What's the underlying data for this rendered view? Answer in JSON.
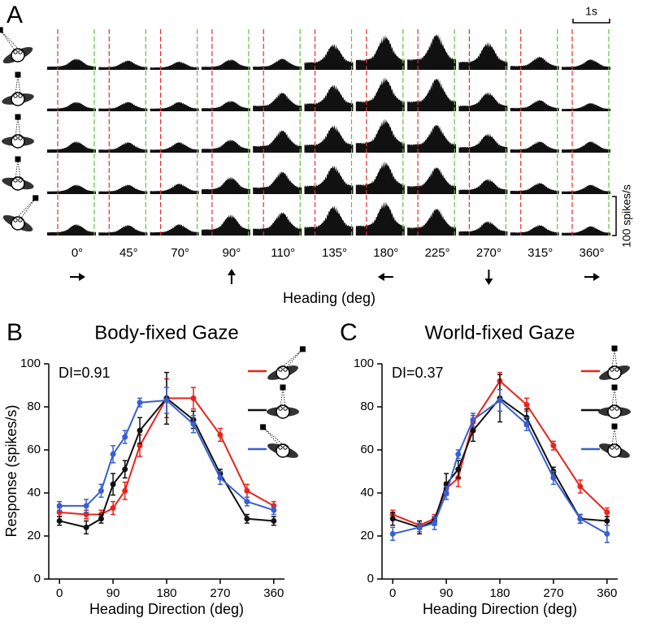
{
  "chart_data": [
    {
      "type": "psth",
      "panel": "A",
      "xlabel": "Heading (deg)",
      "categories": [
        "0°",
        "45°",
        "70°",
        "90°",
        "110°",
        "135°",
        "180°",
        "225°",
        "270°",
        "315°",
        "360°"
      ],
      "rows": [
        [
          30,
          25,
          22,
          28,
          30,
          68,
          90,
          95,
          72,
          35,
          28
        ],
        [
          25,
          25,
          25,
          28,
          50,
          70,
          88,
          88,
          50,
          30,
          22
        ],
        [
          30,
          28,
          28,
          35,
          60,
          72,
          88,
          75,
          50,
          30,
          30
        ],
        [
          25,
          25,
          28,
          45,
          60,
          75,
          85,
          72,
          40,
          30,
          25
        ],
        [
          30,
          28,
          30,
          55,
          62,
          78,
          88,
          72,
          38,
          28,
          25
        ]
      ],
      "color": "#111111",
      "onset_color": "#e03030",
      "offset_color": "#60c040",
      "scalebar": {
        "value": 100,
        "label": "100 spikes/s"
      },
      "timebar": {
        "value": 1,
        "label": "1s"
      }
    },
    {
      "type": "line",
      "panel": "B",
      "title": "Body-fixed Gaze",
      "annotation": "DI=0.91",
      "xlabel": "Heading Direction (deg)",
      "ylabel": "Response (spikes/s)",
      "x": [
        0,
        45,
        70,
        90,
        110,
        135,
        180,
        225,
        270,
        315,
        360
      ],
      "series": [
        {
          "color": "#e8241c",
          "values": [
            31,
            30,
            30,
            33,
            41,
            62,
            84,
            84,
            67,
            41,
            34
          ],
          "errors": [
            2,
            2,
            2,
            3,
            4,
            5,
            9,
            5,
            3,
            3,
            2
          ]
        },
        {
          "color": "#111111",
          "values": [
            27,
            24,
            28,
            44,
            51,
            69,
            84,
            74,
            49,
            28,
            27
          ],
          "errors": [
            2,
            3,
            2,
            5,
            4,
            6,
            12,
            4,
            2,
            2,
            2
          ]
        },
        {
          "color": "#3a5fd0",
          "values": [
            34,
            34,
            41,
            58,
            66,
            82,
            83,
            72,
            47,
            36,
            32
          ],
          "errors": [
            2,
            3,
            3,
            4,
            3,
            2,
            6,
            4,
            3,
            2,
            2
          ]
        }
      ],
      "xlim": [
        -18,
        378
      ],
      "ylim": [
        0,
        100
      ],
      "xticks": [
        0,
        90,
        180,
        270,
        360
      ],
      "yticks": [
        0,
        20,
        40,
        60,
        80,
        100
      ]
    },
    {
      "type": "line",
      "panel": "C",
      "title": "World-fixed Gaze",
      "annotation": "DI=0.37",
      "xlabel": "Heading Direction (deg)",
      "ylabel": "Response (spikes/s)",
      "x": [
        0,
        45,
        70,
        90,
        110,
        135,
        180,
        225,
        270,
        315,
        360
      ],
      "series": [
        {
          "color": "#e8241c",
          "values": [
            30,
            25,
            28,
            42,
            47,
            73,
            92,
            81,
            62,
            43,
            31
          ],
          "errors": [
            2,
            2,
            2,
            3,
            4,
            3,
            4,
            3,
            2,
            3,
            2
          ]
        },
        {
          "color": "#111111",
          "values": [
            28,
            24,
            27,
            44,
            51,
            69,
            84,
            75,
            50,
            28,
            27
          ],
          "errors": [
            3,
            3,
            2,
            5,
            4,
            5,
            11,
            4,
            2,
            2,
            2
          ]
        },
        {
          "color": "#3a5fd0",
          "values": [
            21,
            24,
            26,
            40,
            58,
            74,
            83,
            72,
            47,
            28,
            21
          ],
          "errors": [
            3,
            2,
            3,
            3,
            2,
            3,
            5,
            3,
            3,
            2,
            4
          ]
        }
      ],
      "xlim": [
        -18,
        378
      ],
      "ylim": [
        0,
        100
      ],
      "xticks": [
        0,
        90,
        180,
        270,
        360
      ],
      "yticks": [
        0,
        20,
        40,
        60,
        80,
        100
      ]
    }
  ]
}
